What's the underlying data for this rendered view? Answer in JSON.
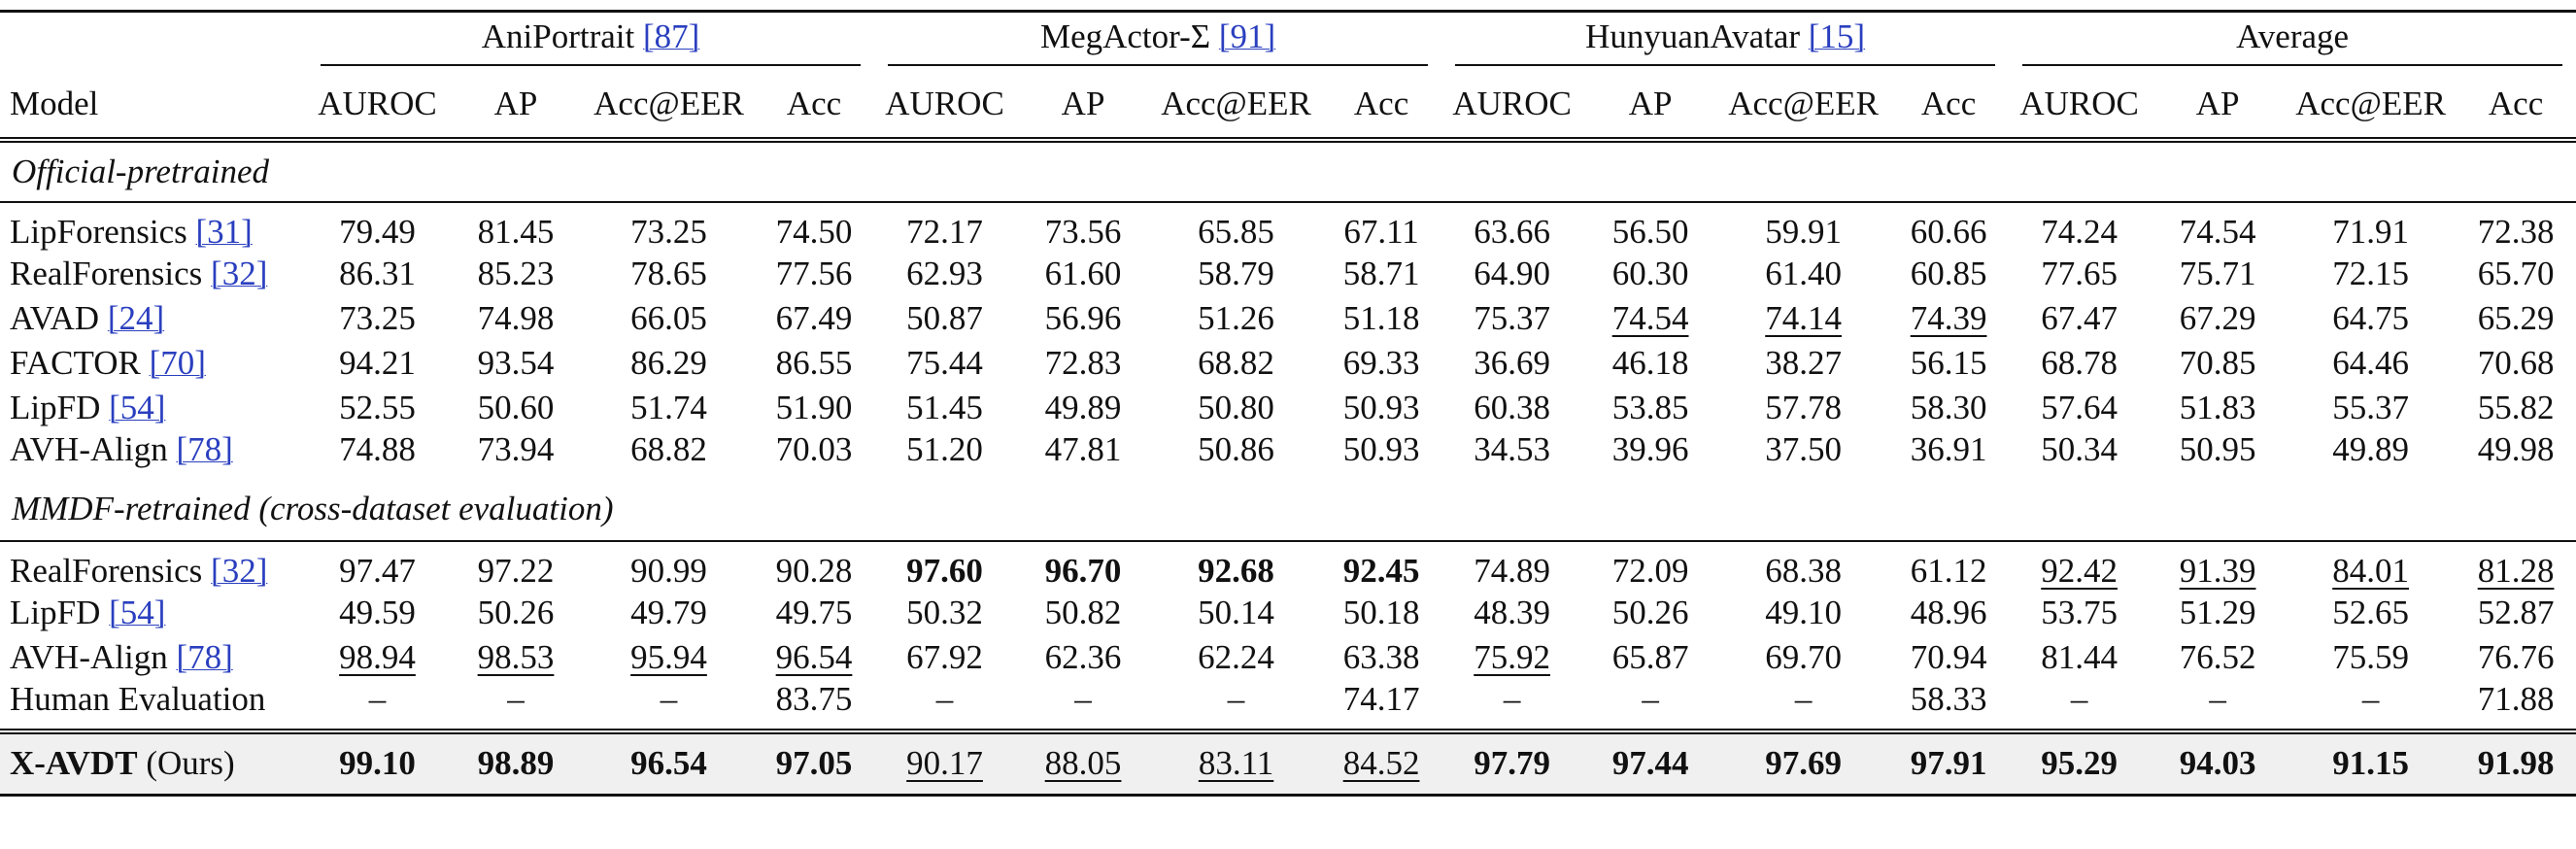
{
  "header": {
    "model_label": "Model",
    "groups": [
      {
        "name": "AniPortrait",
        "ref": "[87]"
      },
      {
        "name": "MegActor-Σ",
        "ref": "[91]"
      },
      {
        "name": "HunyuanAvatar",
        "ref": "[15]"
      },
      {
        "name": "Average"
      }
    ],
    "metrics": [
      "AUROC",
      "AP",
      "Acc@EER",
      "Acc"
    ]
  },
  "sections": [
    {
      "title": "Official-pretrained",
      "rows": [
        {
          "model": "LipForensics",
          "ref": "[31]",
          "values": [
            "79.49",
            "81.45",
            "73.25",
            "74.50",
            "72.17",
            "73.56",
            "65.85",
            "67.11",
            "63.66",
            "56.50",
            "59.91",
            "60.66",
            "74.24",
            "74.54",
            "71.91",
            "72.38"
          ],
          "bold": [],
          "underline": []
        },
        {
          "model": "RealForensics",
          "ref": "[32]",
          "values": [
            "86.31",
            "85.23",
            "78.65",
            "77.56",
            "62.93",
            "61.60",
            "58.79",
            "58.71",
            "64.90",
            "60.30",
            "61.40",
            "60.85",
            "77.65",
            "75.71",
            "72.15",
            "65.70"
          ],
          "bold": [],
          "underline": []
        },
        {
          "model": "AVAD",
          "ref": "[24]",
          "values": [
            "73.25",
            "74.98",
            "66.05",
            "67.49",
            "50.87",
            "56.96",
            "51.26",
            "51.18",
            "75.37",
            "74.54",
            "74.14",
            "74.39",
            "67.47",
            "67.29",
            "64.75",
            "65.29"
          ],
          "bold": [],
          "underline": [
            9,
            10,
            11
          ]
        },
        {
          "model": "FACTOR",
          "ref": "[70]",
          "values": [
            "94.21",
            "93.54",
            "86.29",
            "86.55",
            "75.44",
            "72.83",
            "68.82",
            "69.33",
            "36.69",
            "46.18",
            "38.27",
            "56.15",
            "68.78",
            "70.85",
            "64.46",
            "70.68"
          ],
          "bold": [],
          "underline": []
        },
        {
          "model": "LipFD",
          "ref": "[54]",
          "values": [
            "52.55",
            "50.60",
            "51.74",
            "51.90",
            "51.45",
            "49.89",
            "50.80",
            "50.93",
            "60.38",
            "53.85",
            "57.78",
            "58.30",
            "57.64",
            "51.83",
            "55.37",
            "55.82"
          ],
          "bold": [],
          "underline": []
        },
        {
          "model": "AVH-Align",
          "ref": "[78]",
          "values": [
            "74.88",
            "73.94",
            "68.82",
            "70.03",
            "51.20",
            "47.81",
            "50.86",
            "50.93",
            "34.53",
            "39.96",
            "37.50",
            "36.91",
            "50.34",
            "50.95",
            "49.89",
            "49.98"
          ],
          "bold": [],
          "underline": []
        }
      ]
    },
    {
      "title": "MMDF-retrained (cross-dataset evaluation)",
      "rows": [
        {
          "model": "RealForensics",
          "ref": "[32]",
          "values": [
            "97.47",
            "97.22",
            "90.99",
            "90.28",
            "97.60",
            "96.70",
            "92.68",
            "92.45",
            "74.89",
            "72.09",
            "68.38",
            "61.12",
            "92.42",
            "91.39",
            "84.01",
            "81.28"
          ],
          "bold": [
            4,
            5,
            6,
            7
          ],
          "underline": [
            12,
            13,
            14,
            15
          ]
        },
        {
          "model": "LipFD",
          "ref": "[54]",
          "values": [
            "49.59",
            "50.26",
            "49.79",
            "49.75",
            "50.32",
            "50.82",
            "50.14",
            "50.18",
            "48.39",
            "50.26",
            "49.10",
            "48.96",
            "53.75",
            "51.29",
            "52.65",
            "52.87"
          ],
          "bold": [],
          "underline": []
        },
        {
          "model": "AVH-Align",
          "ref": "[78]",
          "values": [
            "98.94",
            "98.53",
            "95.94",
            "96.54",
            "67.92",
            "62.36",
            "62.24",
            "63.38",
            "75.92",
            "65.87",
            "69.70",
            "70.94",
            "81.44",
            "76.52",
            "75.59",
            "76.76"
          ],
          "bold": [],
          "underline": [
            0,
            1,
            2,
            3,
            8
          ]
        },
        {
          "model": "Human Evaluation",
          "values": [
            "–",
            "–",
            "–",
            "83.75",
            "–",
            "–",
            "–",
            "74.17",
            "–",
            "–",
            "–",
            "58.33",
            "–",
            "–",
            "–",
            "71.88"
          ],
          "bold": [],
          "underline": []
        }
      ]
    }
  ],
  "ours": {
    "model": "X-AVDT",
    "suffix": "(Ours)",
    "values": [
      "99.10",
      "98.89",
      "96.54",
      "97.05",
      "90.17",
      "88.05",
      "83.11",
      "84.52",
      "97.79",
      "97.44",
      "97.69",
      "97.91",
      "95.29",
      "94.03",
      "91.15",
      "91.98"
    ],
    "bold": [
      0,
      1,
      2,
      3,
      8,
      9,
      10,
      11,
      12,
      13,
      14,
      15
    ],
    "underline": [
      4,
      5,
      6,
      7
    ]
  }
}
